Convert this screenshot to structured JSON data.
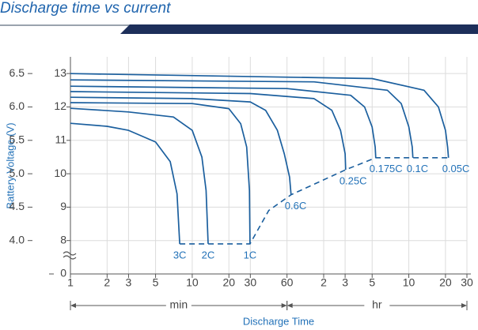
{
  "chart_data": {
    "type": "line",
    "title": "Discharge time vs current",
    "x_label": "Discharge Time",
    "y_label": "Battery Voltage (V)",
    "xlog": true,
    "xlim": [
      1,
      1800
    ],
    "xticks": [
      1,
      2,
      3,
      5,
      10,
      20,
      30,
      60,
      {
        "value": 120,
        "label": "2"
      },
      {
        "value": 180,
        "label": "3"
      },
      {
        "value": 300,
        "label": "5"
      },
      {
        "value": 600,
        "label": "10"
      },
      {
        "value": 1200,
        "label": "20"
      },
      {
        "value": 1800,
        "label": "30"
      }
    ],
    "ranges": [
      {
        "label": "min",
        "from": 1,
        "to": 60
      },
      {
        "label": "hr",
        "from": 60,
        "to": 1800
      }
    ],
    "ylim": [
      7,
      13.5
    ],
    "yticks": [
      8,
      9,
      10,
      11,
      12,
      13
    ],
    "y2lim": [
      3.5,
      6.75
    ],
    "y2ticks": [
      {
        "value": 4,
        "label": "4.0"
      },
      4.5,
      {
        "value": 5,
        "label": "5.0"
      },
      5.5,
      {
        "value": 6,
        "label": "6.0"
      },
      6.5
    ],
    "y_break_tick": 0,
    "grid": true,
    "series": [
      {
        "name": "3C",
        "color": "#1b5f9e",
        "x": [
          1,
          2,
          3,
          5,
          6.6,
          7.5,
          7.9
        ],
        "values": [
          11.51,
          11.42,
          11.3,
          10.95,
          10.36,
          9.4,
          7.9
        ]
      },
      {
        "name": "2C",
        "color": "#1b5f9e",
        "x": [
          1,
          3,
          7,
          10,
          12,
          13,
          13.5
        ],
        "values": [
          11.96,
          11.85,
          11.7,
          11.3,
          10.5,
          9.5,
          7.9
        ]
      },
      {
        "name": "1C",
        "color": "#1b5f9e",
        "x": [
          1,
          10,
          20,
          25,
          28,
          29.5,
          29.8
        ],
        "values": [
          12.13,
          12.1,
          11.95,
          11.5,
          10.8,
          9.5,
          7.9
        ]
      },
      {
        "name": "0.6C",
        "color": "#1b5f9e",
        "x": [
          1,
          10,
          30,
          40,
          50,
          57,
          63,
          64.8
        ],
        "values": [
          12.29,
          12.25,
          12.15,
          11.9,
          11.3,
          10.6,
          9.9,
          9.37
        ]
      },
      {
        "name": "0.25C",
        "color": "#1b5f9e",
        "x": [
          1,
          30,
          100,
          140,
          165,
          180,
          182
        ],
        "values": [
          12.46,
          12.4,
          12.25,
          11.9,
          11.3,
          10.6,
          10.12
        ]
      },
      {
        "name": "0.175C",
        "color": "#1b5f9e",
        "x": [
          1,
          60,
          200,
          260,
          300,
          318,
          321
        ],
        "values": [
          12.62,
          12.55,
          12.35,
          12.0,
          11.4,
          10.8,
          10.48
        ]
      },
      {
        "name": "0.1C",
        "color": "#1b5f9e",
        "x": [
          1,
          100,
          400,
          520,
          600,
          640,
          648
        ],
        "values": [
          12.81,
          12.75,
          12.5,
          12.1,
          11.4,
          10.8,
          10.48
        ]
      },
      {
        "name": "0.05C",
        "color": "#1b5f9e",
        "x": [
          1,
          300,
          800,
          1050,
          1200,
          1250,
          1270
        ],
        "values": [
          13,
          12.85,
          12.5,
          12.0,
          11.3,
          10.8,
          10.48
        ]
      }
    ],
    "end_of_discharge": {
      "color": "#1b5f9e",
      "line_style": "dashed",
      "x": [
        7.9,
        29.8,
        42.5,
        64.8,
        182,
        321,
        1270
      ],
      "values": [
        7.9,
        7.9,
        8.9,
        9.37,
        10.12,
        10.48,
        10.48
      ]
    }
  }
}
